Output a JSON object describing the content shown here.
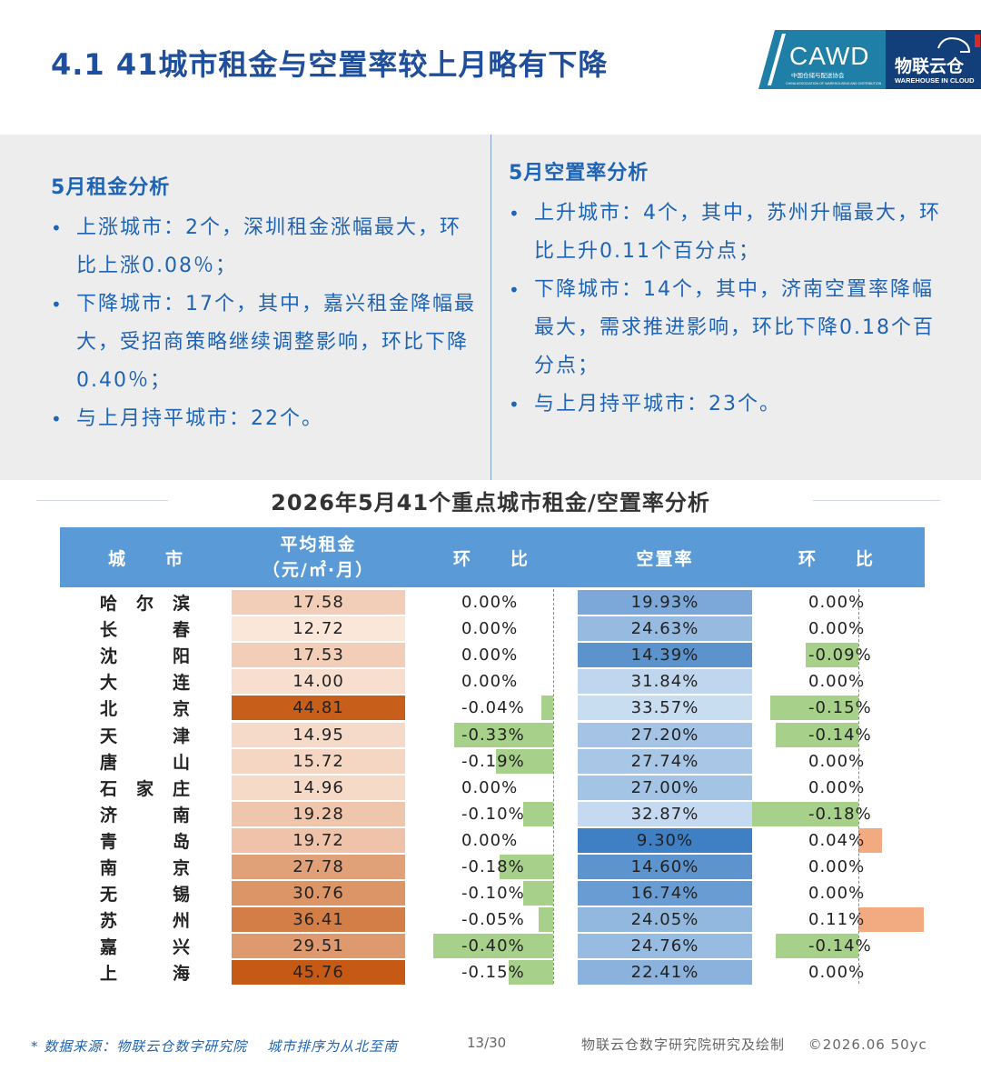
{
  "header": {
    "title": "4.1 41城市租金与空置率较上月略有下降",
    "logo": {
      "brand": "CAWD",
      "subtitle_cn": "中国仓储与配送协会",
      "subtitle_en": "CHINA ASSOCIATION OF WAREHOUSING AND DISTRIBUTION",
      "partner_cn": "物联云仓",
      "partner_en": "WAREHOUSE IN CLOUD",
      "colors": {
        "teal": "#1f7fa6",
        "navy": "#123f7a",
        "red": "#d62a2a"
      }
    }
  },
  "rent_analysis": {
    "heading": "5月租金分析",
    "bullets": [
      "上涨城市：2个，深圳租金涨幅最大，环比上涨0.08％；",
      "下降城市：17个，其中，嘉兴租金降幅最大，受招商策略继续调整影响，环比下降0.40％；",
      "与上月持平城市：22个。"
    ]
  },
  "vacancy_analysis": {
    "heading": "5月空置率分析",
    "bullets": [
      "上升城市：4个，其中，苏州升幅最大，环比上升0.11个百分点；",
      "下降城市：14个，其中，济南空置率降幅最大，需求推进影响，环比下降0.18个百分点；",
      "与上月持平城市：23个。"
    ]
  },
  "table": {
    "title": "2026年5月41个重点城市租金/空置率分析",
    "headers": {
      "city": "城　　市",
      "rent_line1": "平均租金",
      "rent_line2": "（元/㎡·月）",
      "rent_change": "环　　比",
      "vacancy": "空置率",
      "vacancy_change": "环　　比"
    },
    "colors": {
      "header_bg": "#5a9ad7",
      "neg_bar": "#a7d08a",
      "pos_bar": "#f2ab80",
      "rent_low": "#fbe6da",
      "rent_high": "#c65a14",
      "vac_low": "#c9ddf1",
      "vac_high": "#3f7fc4"
    },
    "rows": [
      {
        "city": "哈尔滨",
        "rent": 17.58,
        "rent_text": "17.58",
        "rent_chg": 0.0,
        "rent_chg_text": "0.00%",
        "vacancy": 19.93,
        "vacancy_text": "19.93%",
        "vac_chg": 0.0,
        "vac_chg_text": "0.00%"
      },
      {
        "city": "长春",
        "rent": 12.72,
        "rent_text": "12.72",
        "rent_chg": 0.0,
        "rent_chg_text": "0.00%",
        "vacancy": 24.63,
        "vacancy_text": "24.63%",
        "vac_chg": 0.0,
        "vac_chg_text": "0.00%"
      },
      {
        "city": "沈阳",
        "rent": 17.53,
        "rent_text": "17.53",
        "rent_chg": 0.0,
        "rent_chg_text": "0.00%",
        "vacancy": 14.39,
        "vacancy_text": "14.39%",
        "vac_chg": -0.09,
        "vac_chg_text": "-0.09%"
      },
      {
        "city": "大连",
        "rent": 14.0,
        "rent_text": "14.00",
        "rent_chg": 0.0,
        "rent_chg_text": "0.00%",
        "vacancy": 31.84,
        "vacancy_text": "31.84%",
        "vac_chg": 0.0,
        "vac_chg_text": "0.00%"
      },
      {
        "city": "北京",
        "rent": 44.81,
        "rent_text": "44.81",
        "rent_chg": -0.04,
        "rent_chg_text": "-0.04%",
        "vacancy": 33.57,
        "vacancy_text": "33.57%",
        "vac_chg": -0.15,
        "vac_chg_text": "-0.15%"
      },
      {
        "city": "天津",
        "rent": 14.95,
        "rent_text": "14.95",
        "rent_chg": -0.33,
        "rent_chg_text": "-0.33%",
        "vacancy": 27.2,
        "vacancy_text": "27.20%",
        "vac_chg": -0.14,
        "vac_chg_text": "-0.14%"
      },
      {
        "city": "唐山",
        "rent": 15.72,
        "rent_text": "15.72",
        "rent_chg": -0.19,
        "rent_chg_text": "-0.19%",
        "vacancy": 27.74,
        "vacancy_text": "27.74%",
        "vac_chg": 0.0,
        "vac_chg_text": "0.00%"
      },
      {
        "city": "石家庄",
        "rent": 14.96,
        "rent_text": "14.96",
        "rent_chg": 0.0,
        "rent_chg_text": "0.00%",
        "vacancy": 27.0,
        "vacancy_text": "27.00%",
        "vac_chg": 0.0,
        "vac_chg_text": "0.00%"
      },
      {
        "city": "济南",
        "rent": 19.28,
        "rent_text": "19.28",
        "rent_chg": -0.1,
        "rent_chg_text": "-0.10%",
        "vacancy": 32.87,
        "vacancy_text": "32.87%",
        "vac_chg": -0.18,
        "vac_chg_text": "-0.18%"
      },
      {
        "city": "青岛",
        "rent": 19.72,
        "rent_text": "19.72",
        "rent_chg": 0.0,
        "rent_chg_text": "0.00%",
        "vacancy": 9.3,
        "vacancy_text": "9.30%",
        "vac_chg": 0.04,
        "vac_chg_text": "0.04%"
      },
      {
        "city": "南京",
        "rent": 27.78,
        "rent_text": "27.78",
        "rent_chg": -0.18,
        "rent_chg_text": "-0.18%",
        "vacancy": 14.6,
        "vacancy_text": "14.60%",
        "vac_chg": 0.0,
        "vac_chg_text": "0.00%"
      },
      {
        "city": "无锡",
        "rent": 30.76,
        "rent_text": "30.76",
        "rent_chg": -0.1,
        "rent_chg_text": "-0.10%",
        "vacancy": 16.74,
        "vacancy_text": "16.74%",
        "vac_chg": 0.0,
        "vac_chg_text": "0.00%"
      },
      {
        "city": "苏州",
        "rent": 36.41,
        "rent_text": "36.41",
        "rent_chg": -0.05,
        "rent_chg_text": "-0.05%",
        "vacancy": 24.05,
        "vacancy_text": "24.05%",
        "vac_chg": 0.11,
        "vac_chg_text": "0.11%"
      },
      {
        "city": "嘉兴",
        "rent": 29.51,
        "rent_text": "29.51",
        "rent_chg": -0.4,
        "rent_chg_text": "-0.40%",
        "vacancy": 24.76,
        "vacancy_text": "24.76%",
        "vac_chg": -0.14,
        "vac_chg_text": "-0.14%"
      },
      {
        "city": "上海",
        "rent": 45.76,
        "rent_text": "45.76",
        "rent_chg": -0.15,
        "rent_chg_text": "-0.15%",
        "vacancy": 22.41,
        "vacancy_text": "22.41%",
        "vac_chg": 0.0,
        "vac_chg_text": "0.00%"
      }
    ]
  },
  "footer": {
    "source": "* 数据来源：物联云仓数字研究院",
    "order_note": "城市排序为从北至南",
    "page": "13/30",
    "credit": "物联云仓数字研究院研究及绘制",
    "copyright": "©2026.06 50yc"
  }
}
